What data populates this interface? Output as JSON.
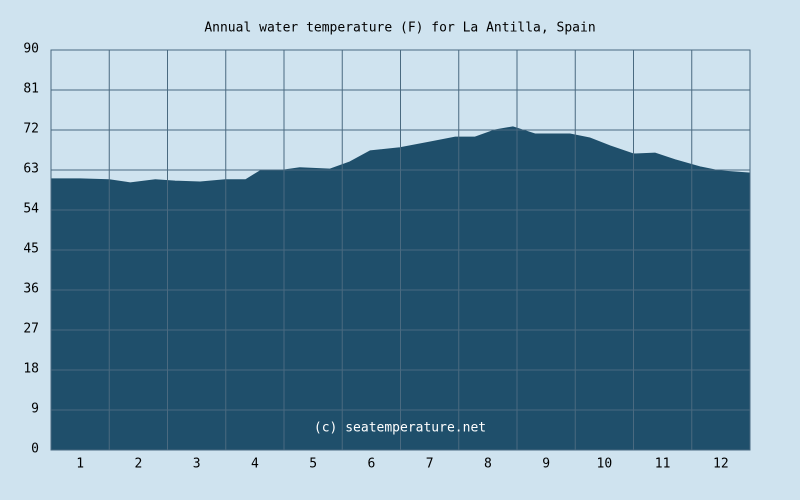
{
  "chart_data": {
    "type": "area",
    "title": "Annual water temperature (F) for La Antilla, Spain",
    "annotation": "(c) seatemperature.net",
    "x": [
      0.5,
      1.0,
      1.5,
      1.86,
      2.29,
      2.63,
      3.06,
      3.49,
      3.84,
      4.09,
      4.5,
      4.77,
      5.29,
      5.63,
      5.98,
      6.49,
      7.01,
      7.44,
      7.78,
      8.12,
      8.43,
      8.81,
      9.41,
      9.75,
      10.1,
      10.5,
      10.87,
      11.21,
      11.64,
      11.98,
      12.5
    ],
    "values": [
      61.0,
      61.0,
      60.8,
      60.1,
      60.8,
      60.5,
      60.3,
      60.8,
      60.8,
      62.8,
      63.0,
      63.5,
      63.2,
      64.8,
      67.3,
      68.0,
      69.3,
      70.4,
      70.4,
      72.0,
      72.7,
      71.1,
      71.1,
      70.2,
      68.4,
      66.6,
      66.8,
      65.3,
      63.7,
      62.8,
      62.3
    ],
    "color": "#1f4f6b",
    "xlim": [
      0.5,
      12.5
    ],
    "xticks": [
      1,
      2,
      3,
      4,
      5,
      6,
      7,
      8,
      9,
      10,
      11,
      12
    ],
    "ylim": [
      0,
      90
    ],
    "yticks": [
      0,
      9,
      18,
      27,
      36,
      45,
      54,
      63,
      72,
      81,
      90
    ],
    "grid": true
  }
}
